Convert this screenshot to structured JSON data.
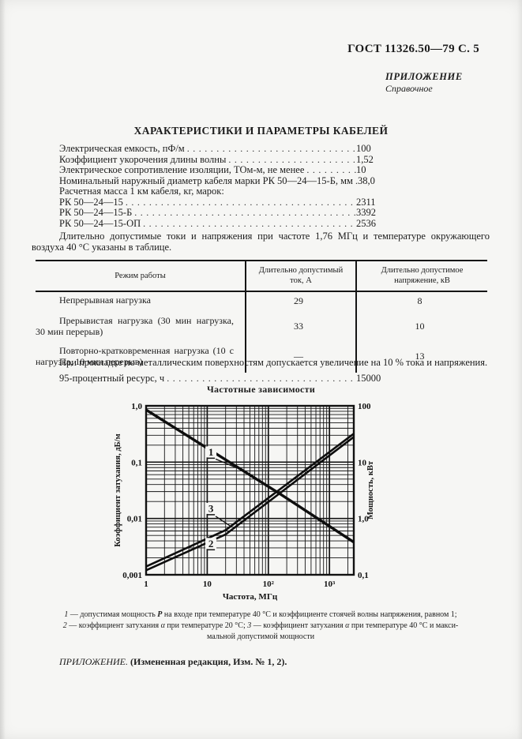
{
  "page": {
    "header": "ГОСТ 11326.50—79 С. 5",
    "annex_label": "ПРИЛОЖЕНИЕ",
    "annex_sub": "Справочное",
    "title": "ХАРАКТЕРИСТИКИ И ПАРАМЕТРЫ КАБЕЛЕЙ",
    "dot_leader": "................................................................................",
    "ink_color": "#1c1c1c",
    "paper_color": "#f6f6f4"
  },
  "specs": [
    {
      "label": "Электрическая емкость, пФ/м",
      "value": "100"
    },
    {
      "label": "Коэффициент укорочения длины волны",
      "value": "1,52"
    },
    {
      "label": "Электрическое сопротивление изоляции, ТОм-м, не менее",
      "value": "10"
    },
    {
      "label": "Номинальный наружный диаметр кабеля марки РК 50—24—15-Б, мм",
      "value": "38,0"
    },
    {
      "label": "Расчетная масса 1 км кабеля, кг, марок:",
      "value": ""
    },
    {
      "label": "РК 50—24—15",
      "value": "2311"
    },
    {
      "label": "РК 50—24—15-Б",
      "value": "3392"
    },
    {
      "label": "РК 50—24—15-ОП",
      "value": "2536"
    }
  ],
  "paragraphs": {
    "p1": "Длительно допустимые токи и напряжения при частоте 1,76 МГц и температуре окружающего воздуха 40 °С указаны в таблице.",
    "p2": "При прокладке по металлическим поверхностям допускается увеличение на 10 % тока и напряжения."
  },
  "resource": {
    "label": "95-процентный ресурс, ч",
    "value": "15000"
  },
  "table": {
    "headers": [
      "Режим работы",
      "Длительно допустимый ток, А",
      "Длительно допустимое напряжение, кВ"
    ],
    "rows": [
      {
        "mode": "Непрерывная нагрузка",
        "current": "29",
        "voltage": "8"
      },
      {
        "mode": "Прерывистая нагрузка (30 мин нагрузка, 30 мин перерыв)",
        "current": "33",
        "voltage": "10"
      },
      {
        "mode": "Повторно-кратковременная нагрузка (10 с нагрузка, 10 мин перерыв)",
        "current": "—",
        "voltage": "13"
      }
    ]
  },
  "chart_data": {
    "type": "line",
    "title": "Частотные зависимости",
    "xlabel": "Частота, МГц",
    "ylabel_left": "Коэффициент затухания, дБ/м",
    "ylabel_right": "Мощность, кВт",
    "x_scale": "log",
    "x_range": [
      1,
      2500
    ],
    "y_left_scale": "log",
    "y_left_range": [
      0.001,
      1.0
    ],
    "y_right_scale": "log",
    "y_right_range": [
      0.1,
      100
    ],
    "grid": "log-log, major and minor lines on",
    "x_ticks": [
      {
        "v": 1,
        "label": "1"
      },
      {
        "v": 10,
        "label": "10"
      },
      {
        "v": 100,
        "label": "10²"
      },
      {
        "v": 1000,
        "label": "10³"
      }
    ],
    "y_left_ticks": [
      {
        "v": 1,
        "label": "1,0"
      },
      {
        "v": 0.1,
        "label": "0,1"
      },
      {
        "v": 0.01,
        "label": "0,01"
      },
      {
        "v": 0.001,
        "label": "0,001"
      }
    ],
    "y_right_ticks": [
      {
        "v": 100,
        "label": "100"
      },
      {
        "v": 10,
        "label": "10"
      },
      {
        "v": 1,
        "label": "1,0"
      },
      {
        "v": 0.1,
        "label": "0,1"
      }
    ],
    "series": [
      {
        "name": "1",
        "axis": "right",
        "meaning": "допустимая мощность P, кВт",
        "points": [
          [
            1,
            85
          ],
          [
            150,
            2.8
          ],
          [
            2500,
            0.38
          ]
        ],
        "label_at": {
          "x": 11.5,
          "y_left": 0.152
        }
      },
      {
        "name": "3",
        "axis": "left",
        "meaning": "коэффициент затухания при 40 °С, дБ/м",
        "points": [
          [
            1,
            0.0014
          ],
          [
            20,
            0.0062
          ],
          [
            2500,
            0.32
          ]
        ],
        "label_at": {
          "x": 11.5,
          "y_left": 0.0151
        }
      },
      {
        "name": "2",
        "axis": "left",
        "meaning": "коэффициент затухания при 20 °С, дБ/м",
        "points": [
          [
            1,
            0.0012
          ],
          [
            20,
            0.0052
          ],
          [
            2500,
            0.28
          ]
        ],
        "label_at": {
          "x": 11.5,
          "y_left": 0.0036
        }
      }
    ]
  },
  "footnotes": {
    "line1": [
      {
        "t": "1",
        "s": "i"
      },
      {
        "t": " — допустимая мощность ",
        "s": ""
      },
      {
        "t": "Р",
        "s": "bi"
      },
      {
        "t": " на входе при температуре 40 °С и коэффициенте стоячей волны напряжения, равном 1;",
        "s": ""
      }
    ],
    "line2": [
      {
        "t": "2",
        "s": "i"
      },
      {
        "t": " — коэффициент затухания ",
        "s": ""
      },
      {
        "t": "α",
        "s": "i"
      },
      {
        "t": " при температуре 20 °С; ",
        "s": ""
      },
      {
        "t": "3",
        "s": "i"
      },
      {
        "t": " — коэффициент затухания ",
        "s": ""
      },
      {
        "t": "α",
        "s": "i"
      },
      {
        "t": " при температуре 40 °С и макси-",
        "s": ""
      }
    ],
    "line3": [
      {
        "t": "мальной допустимой мощности",
        "s": ""
      }
    ]
  },
  "bottom": [
    {
      "t": "ПРИЛОЖЕНИЕ.",
      "s": "i"
    },
    {
      "t": " (Измененная редакция, Изм. № 1, 2).",
      "s": "b"
    }
  ]
}
